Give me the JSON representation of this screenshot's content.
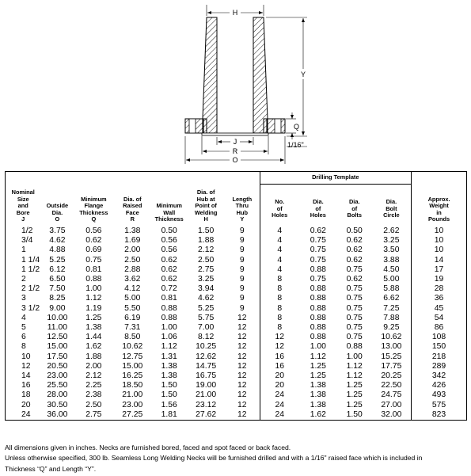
{
  "drawing": {
    "labels": {
      "h": "H",
      "y": "Y",
      "q": "Q",
      "j": "J",
      "r": "R",
      "o": "O",
      "raised_face": "1/16\""
    }
  },
  "table": {
    "drilling_template_title": "Drilling Template",
    "headers": {
      "nominal": "Nominal\nSize\nand\nBore\nJ",
      "outside": "Outside\nDia.\nO",
      "flange": "Minimum\nFlange\nThickness\nQ",
      "raised": "Dia. of\nRaised\nFace\nR",
      "wall": "Minimum\nWall\nThickness",
      "hub": "Dia. of\nHub at\nPoint of\nWelding\nH",
      "length": "Length\nThru\nHub\nY",
      "holes_no": "No.\nof\nHoles",
      "holes_dia": "Dia.\nof\nHoles",
      "bolts_dia": "Dia.\nof\nBolts",
      "circle": "Dia.\nBolt\nCircle",
      "weight": "Approx.\nWeight\nin\nPounds"
    },
    "rows": [
      [
        "1/2",
        "3.75",
        "0.56",
        "1.38",
        "0.50",
        "1.50",
        "9",
        "4",
        "0.62",
        "0.50",
        "2.62",
        "10"
      ],
      [
        "3/4",
        "4.62",
        "0.62",
        "1.69",
        "0.56",
        "1.88",
        "9",
        "4",
        "0.75",
        "0.62",
        "3.25",
        "10"
      ],
      [
        "1",
        "4.88",
        "0.69",
        "2.00",
        "0.56",
        "2.12",
        "9",
        "4",
        "0.75",
        "0.62",
        "3.50",
        "10"
      ],
      [
        "1 1/4",
        "5.25",
        "0.75",
        "2.50",
        "0.62",
        "2.50",
        "9",
        "4",
        "0.75",
        "0.62",
        "3.88",
        "14"
      ],
      [
        "1 1/2",
        "6.12",
        "0.81",
        "2.88",
        "0.62",
        "2.75",
        "9",
        "4",
        "0.88",
        "0.75",
        "4.50",
        "17"
      ],
      [
        "2",
        "6.50",
        "0.88",
        "3.62",
        "0.62",
        "3.25",
        "9",
        "8",
        "0.75",
        "0.62",
        "5.00",
        "19"
      ],
      [
        "2 1/2",
        "7.50",
        "1.00",
        "4.12",
        "0.72",
        "3.94",
        "9",
        "8",
        "0.88",
        "0.75",
        "5.88",
        "28"
      ],
      [
        "3",
        "8.25",
        "1.12",
        "5.00",
        "0.81",
        "4.62",
        "9",
        "8",
        "0.88",
        "0.75",
        "6.62",
        "36"
      ],
      [
        "3 1/2",
        "9.00",
        "1.19",
        "5.50",
        "0.88",
        "5.25",
        "9",
        "8",
        "0.88",
        "0.75",
        "7.25",
        "45"
      ],
      [
        "4",
        "10.00",
        "1.25",
        "6.19",
        "0.88",
        "5.75",
        "12",
        "8",
        "0.88",
        "0.75",
        "7.88",
        "54"
      ],
      [
        "5",
        "11.00",
        "1.38",
        "7.31",
        "1.00",
        "7.00",
        "12",
        "8",
        "0.88",
        "0.75",
        "9.25",
        "86"
      ],
      [
        "6",
        "12.50",
        "1.44",
        "8.50",
        "1.06",
        "8.12",
        "12",
        "12",
        "0.88",
        "0.75",
        "10.62",
        "108"
      ],
      [
        "8",
        "15.00",
        "1.62",
        "10.62",
        "1.12",
        "10.25",
        "12",
        "12",
        "1.00",
        "0.88",
        "13.00",
        "150"
      ],
      [
        "10",
        "17.50",
        "1.88",
        "12.75",
        "1.31",
        "12.62",
        "12",
        "16",
        "1.12",
        "1.00",
        "15.25",
        "218"
      ],
      [
        "12",
        "20.50",
        "2.00",
        "15.00",
        "1.38",
        "14.75",
        "12",
        "16",
        "1.25",
        "1.12",
        "17.75",
        "289"
      ],
      [
        "14",
        "23.00",
        "2.12",
        "16.25",
        "1.38",
        "16.75",
        "12",
        "20",
        "1.25",
        "1.12",
        "20.25",
        "342"
      ],
      [
        "16",
        "25.50",
        "2.25",
        "18.50",
        "1.50",
        "19.00",
        "12",
        "20",
        "1.38",
        "1.25",
        "22.50",
        "426"
      ],
      [
        "18",
        "28.00",
        "2.38",
        "21.00",
        "1.50",
        "21.00",
        "12",
        "24",
        "1.38",
        "1.25",
        "24.75",
        "493"
      ],
      [
        "20",
        "30.50",
        "2.50",
        "23.00",
        "1.56",
        "23.12",
        "12",
        "24",
        "1.38",
        "1.25",
        "27.00",
        "575"
      ],
      [
        "24",
        "36.00",
        "2.75",
        "27.25",
        "1.81",
        "27.62",
        "12",
        "24",
        "1.62",
        "1.50",
        "32.00",
        "823"
      ]
    ]
  },
  "notes": {
    "line1": "All dimensions given in inches. Necks are furnished bored, faced and spot faced or back faced.",
    "line2": "Unless otherwise specified, 300 lb. Seamless Long Welding Necks will be furnished drilled and with a 1/16\" raised face which is included in",
    "line3": "Thickness “Q” and Length “Y”."
  }
}
